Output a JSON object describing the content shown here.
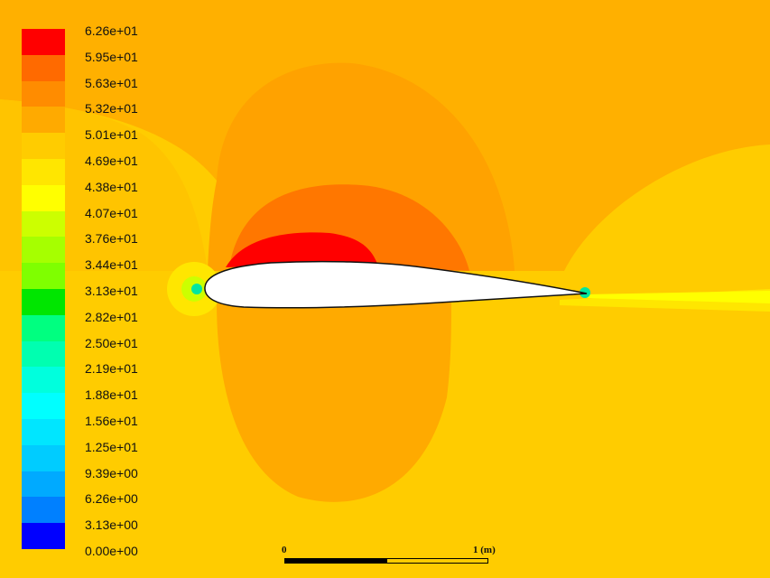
{
  "plot": {
    "type": "contour",
    "subject": "airfoil velocity magnitude contours",
    "background_color": "#ffcc00",
    "airfoil_fill": "#ffffff"
  },
  "legend": {
    "levels": [
      {
        "label": "6.26e+01",
        "color": "#ff0000"
      },
      {
        "label": "5.95e+01",
        "color": "#ff6a00"
      },
      {
        "label": "5.63e+01",
        "color": "#ff8c00"
      },
      {
        "label": "5.32e+01",
        "color": "#ffaa00"
      },
      {
        "label": "5.01e+01",
        "color": "#ffcc00"
      },
      {
        "label": "4.69e+01",
        "color": "#ffe600"
      },
      {
        "label": "4.38e+01",
        "color": "#ffff00"
      },
      {
        "label": "4.07e+01",
        "color": "#ccff00"
      },
      {
        "label": "3.76e+01",
        "color": "#a6ff00"
      },
      {
        "label": "3.44e+01",
        "color": "#7fff00"
      },
      {
        "label": "3.13e+01",
        "color": "#00e600"
      },
      {
        "label": "2.82e+01",
        "color": "#00ff80"
      },
      {
        "label": "2.50e+01",
        "color": "#00ffb0"
      },
      {
        "label": "2.19e+01",
        "color": "#00ffdd"
      },
      {
        "label": "1.88e+01",
        "color": "#00ffff"
      },
      {
        "label": "1.56e+01",
        "color": "#00e6ff"
      },
      {
        "label": "1.25e+01",
        "color": "#00ccff"
      },
      {
        "label": "9.39e+00",
        "color": "#00aaff"
      },
      {
        "label": "6.26e+00",
        "color": "#0080ff"
      },
      {
        "label": "3.13e+00",
        "color": "#0040ff"
      },
      {
        "label": "0.00e+00",
        "color": "#0000ff"
      }
    ]
  },
  "scale_bar": {
    "start_label": "0",
    "end_label": "1 (m)"
  }
}
